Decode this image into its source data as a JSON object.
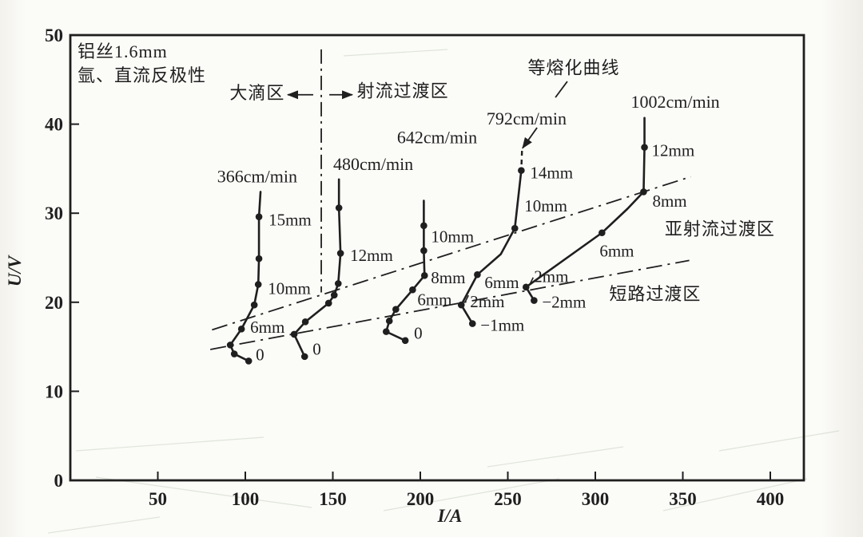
{
  "page": {
    "background": "#fbfbf8",
    "ink": "#1f1f1f",
    "artifact_color": "#b6c3ac"
  },
  "info_block": {
    "line1": "铝丝1.6mm",
    "line2": "氩、直流反极性"
  },
  "chart_data": {
    "type": "line",
    "title": "",
    "xlabel": "I/A",
    "ylabel": "U/V",
    "xlim": [
      0,
      419
    ],
    "ylim": [
      0,
      50
    ],
    "x_ticks": [
      50,
      100,
      150,
      200,
      250,
      300,
      350,
      400
    ],
    "y_ticks": [
      0,
      10,
      20,
      30,
      40,
      50
    ],
    "grid": false,
    "legend_position": "none",
    "series": [
      {
        "name": "366cm/min",
        "name_pos": {
          "x": 106.8,
          "y": 33.9
        },
        "points": [
          {
            "x": 108.7,
            "y": 32.4,
            "m": 0
          },
          {
            "x": 107.8,
            "y": 29.6,
            "m": 1,
            "t": "15mm",
            "dx": 12,
            "dy": 6
          },
          {
            "x": 107.8,
            "y": 24.9,
            "m": 1
          },
          {
            "x": 107.4,
            "y": 22.0,
            "m": 1,
            "t": "10mm",
            "dx": 12,
            "dy": 7
          },
          {
            "x": 105.1,
            "y": 19.7,
            "m": 1
          },
          {
            "x": 97.8,
            "y": 17.0,
            "m": 1,
            "t": "6mm",
            "dx": 11,
            "dy": 0
          },
          {
            "x": 91.4,
            "y": 15.2,
            "m": 1
          },
          {
            "x": 93.7,
            "y": 14.2,
            "m": 1
          },
          {
            "x": 101.9,
            "y": 13.4,
            "m": 1,
            "t": "0",
            "dx": 9,
            "dy": -6
          }
        ]
      },
      {
        "name": "480cm/min",
        "name_pos": {
          "x": 173.1,
          "y": 35.3
        },
        "points": [
          {
            "x": 153.5,
            "y": 33.8,
            "m": 0
          },
          {
            "x": 153.5,
            "y": 30.6,
            "m": 1
          },
          {
            "x": 154.4,
            "y": 25.5,
            "m": 1,
            "t": "12mm",
            "dx": 12,
            "dy": 5
          },
          {
            "x": 153.1,
            "y": 22.1,
            "m": 1
          },
          {
            "x": 150.8,
            "y": 20.8,
            "m": 1
          },
          {
            "x": 147.6,
            "y": 19.9,
            "m": 1
          },
          {
            "x": 134.3,
            "y": 17.8,
            "m": 1
          },
          {
            "x": 127.9,
            "y": 16.4,
            "m": 1
          },
          {
            "x": 133.9,
            "y": 13.9,
            "m": 1,
            "t": "0",
            "dx": 10,
            "dy": -7
          }
        ]
      },
      {
        "name": "642cm/min",
        "name_pos": {
          "x": 209.6,
          "y": 38.3
        },
        "points": [
          {
            "x": 202.0,
            "y": 31.4,
            "m": 0
          },
          {
            "x": 202.0,
            "y": 28.6,
            "m": 1,
            "t": "10mm",
            "dx": 9,
            "dy": 16
          },
          {
            "x": 202.0,
            "y": 25.8,
            "m": 1
          },
          {
            "x": 202.4,
            "y": 23.0,
            "m": 1,
            "t": "8mm",
            "dx": 8,
            "dy": 5
          },
          {
            "x": 195.6,
            "y": 21.4,
            "m": 1
          },
          {
            "x": 186.0,
            "y": 19.2,
            "m": 1,
            "t": "6mm",
            "dx": 27,
            "dy": -10
          },
          {
            "x": 182.3,
            "y": 17.9,
            "m": 1
          },
          {
            "x": 180.5,
            "y": 16.7,
            "m": 1
          },
          {
            "x": 191.4,
            "y": 15.7,
            "m": 1,
            "t": "0",
            "dx": 11,
            "dy": -7
          }
        ]
      },
      {
        "name": "792cm/min",
        "name_pos": {
          "x": 260.7,
          "y": 40.4
        },
        "dash_first": true,
        "points": [
          {
            "x": 258.1,
            "y": 37.0,
            "m": 0
          },
          {
            "x": 257.7,
            "y": 34.8,
            "m": 1,
            "t": "14mm",
            "dx": 11,
            "dy": 5
          },
          {
            "x": 254.0,
            "y": 28.3,
            "m": 1,
            "t": "10mm",
            "dx": 12,
            "dy": -26
          },
          {
            "x": 246.0,
            "y": 25.4,
            "m": 0
          },
          {
            "x": 232.6,
            "y": 23.1,
            "m": 1,
            "t": "6mm",
            "dx": 9,
            "dy": 12
          },
          {
            "x": 223.4,
            "y": 19.7,
            "m": 1,
            "t": "2mm",
            "dx": 11,
            "dy": -2,
            "tick": true
          },
          {
            "x": 229.8,
            "y": 17.6,
            "m": 1,
            "t": "−1mm",
            "dx": 10,
            "dy": 4
          }
        ]
      },
      {
        "name": "1002cm/min",
        "name_pos": {
          "x": 345.7,
          "y": 42.3
        },
        "points": [
          {
            "x": 328.1,
            "y": 40.7,
            "m": 0
          },
          {
            "x": 328.1,
            "y": 37.4,
            "m": 1,
            "t": "12mm",
            "dx": 9,
            "dy": 6
          },
          {
            "x": 327.6,
            "y": 32.4,
            "m": 1,
            "t": "8mm",
            "dx": 11,
            "dy": 14
          },
          {
            "x": 318.4,
            "y": 30.5,
            "m": 0
          },
          {
            "x": 303.8,
            "y": 27.8,
            "m": 1,
            "t": "6mm",
            "dx": -3,
            "dy": 25
          },
          {
            "x": 260.4,
            "y": 21.7,
            "m": 1,
            "t": "2mm",
            "dx": 10,
            "dy": -11,
            "tick": true
          },
          {
            "x": 265.0,
            "y": 20.2,
            "m": 1,
            "t": "−2mm",
            "dx": 10,
            "dy": 4
          }
        ]
      }
    ],
    "region_boundaries": [
      {
        "name": "jet-subjet-boundary",
        "from": {
          "x": 81.0,
          "y": 16.9
        },
        "to": {
          "x": 354.6,
          "y": 34.1
        }
      },
      {
        "name": "subjet-short-boundary",
        "from": {
          "x": 80.0,
          "y": 14.7
        },
        "to": {
          "x": 353.7,
          "y": 24.7
        }
      }
    ],
    "vertical_divider": {
      "x": 143.4,
      "y_from": 21.1,
      "y_to": 48.4
    },
    "region_labels": [
      {
        "text": "大滴区",
        "x": 106.8,
        "y": 43.3
      },
      {
        "text": "射流过渡区",
        "x": 190.0,
        "y": 43.5
      },
      {
        "text": "亚射流过渡区",
        "x": 371.2,
        "y": 28.0
      },
      {
        "text": "短路过渡区",
        "x": 334.2,
        "y": 20.7
      }
    ],
    "divider_arrows": [
      {
        "x_from": 138.8,
        "x_to": 124.2,
        "y": 43.3
      },
      {
        "x_from": 148.0,
        "x_to": 161.2,
        "y": 43.3
      }
    ],
    "melting_label": {
      "text": "等熔化曲线",
      "x": 287.7,
      "y": 46.1,
      "leader": [
        {
          "x1": 284.0,
          "y1": 44.8,
          "x2": 277.2,
          "y2": 43.0
        },
        {
          "x1": 266.7,
          "y1": 39.6,
          "x2": 258.4,
          "y2": 37.3,
          "arrow": true
        }
      ]
    }
  }
}
